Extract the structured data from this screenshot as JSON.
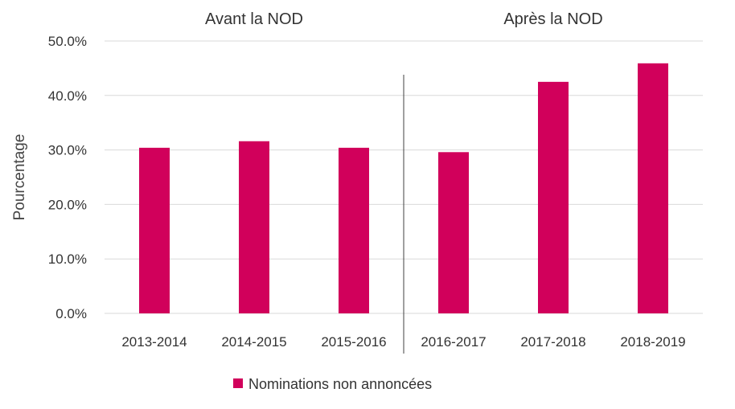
{
  "chart_data": {
    "type": "bar",
    "categories": [
      "2013-2014",
      "2014-2015",
      "2015-2016",
      "2016-2017",
      "2017-2018",
      "2018-2019"
    ],
    "series": [
      {
        "name": "Nominations non annoncées",
        "values": [
          30.4,
          31.6,
          30.4,
          29.6,
          42.5,
          45.9
        ]
      }
    ],
    "ylabel": "Pourcentage",
    "ylim": [
      0,
      50
    ],
    "yticks": [
      "0.0%",
      "10.0%",
      "20.0%",
      "30.0%",
      "40.0%",
      "50.0%"
    ],
    "section_labels": [
      "Avant la NOD",
      "Après la NOD"
    ],
    "divider_after_category": 3,
    "grid": true,
    "legend_position": "bottom",
    "colors": {
      "bar": "#d1005b",
      "grid": "#d9d9d9",
      "divider": "#404040"
    }
  }
}
